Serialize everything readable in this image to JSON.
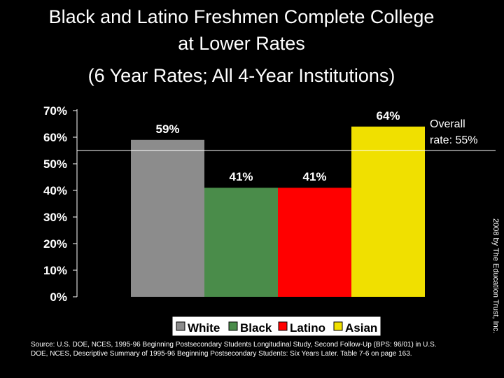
{
  "header": {
    "title_line1": "Black and Latino Freshmen Complete College",
    "title_line2": "at Lower Rates",
    "subtitle": "(6 Year Rates; All 4-Year Institutions)"
  },
  "chart_data": {
    "type": "bar",
    "categories": [
      "White",
      "Black",
      "Latino",
      "Asian"
    ],
    "values": [
      59,
      41,
      41,
      64
    ],
    "value_labels": [
      "59%",
      "41%",
      "41%",
      "64%"
    ],
    "colors": [
      "#8c8c8c",
      "#4a8c4a",
      "#ff0000",
      "#f0e000"
    ],
    "ylim": [
      0,
      70
    ],
    "yticks": [
      "0%",
      "10%",
      "20%",
      "30%",
      "40%",
      "50%",
      "60%",
      "70%"
    ],
    "grid": false,
    "legend_position": "bottom",
    "reference_line": {
      "value": 55,
      "label_line1": "Overall",
      "label_line2": "rate: 55%"
    },
    "background": "#000000"
  },
  "footer": {
    "source": "Source:  U.S. DOE, NCES, 1995-96 Beginning Postsecondary Students Longitudinal Study, Second Follow-Up (BPS: 96/01) in U.S. DOE, NCES, Descriptive Summary of 1995-96 Beginning Postsecondary Students: Six Years Later.  Table 7-6 on page 163.",
    "credit": "2008 by The Education Trust, Inc."
  }
}
